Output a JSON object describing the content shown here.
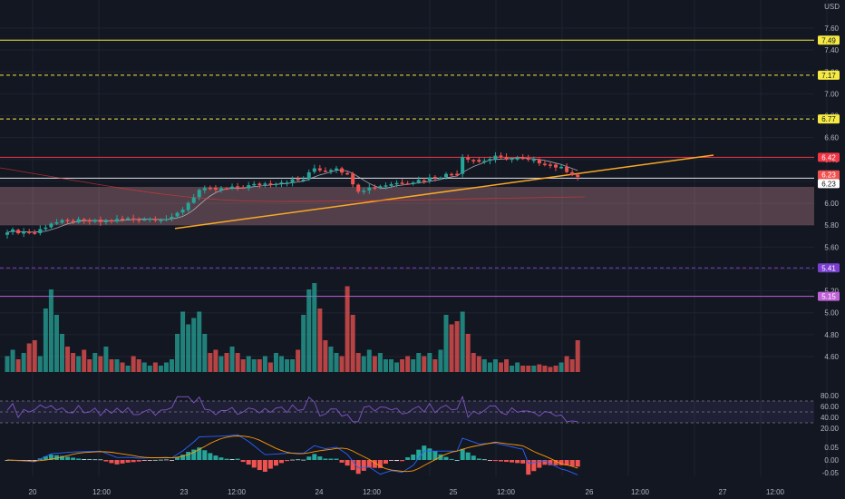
{
  "header": {
    "currency": "USD"
  },
  "colors": {
    "background": "#131722",
    "grid": "#1f2330",
    "up": "#26a69a",
    "down": "#ef5350",
    "trendline": "#f9a825",
    "level_yellow": "#f5e942",
    "level_red": "#f23645",
    "level_purple": "#7b3fd0",
    "zone": "#f9a9b0",
    "rsi": "#7e57c2",
    "macd_line": "#2962ff",
    "signal_line": "#ff9800"
  },
  "price_tags": [
    {
      "label": "7.49",
      "value": 7.49,
      "bg": "#f5e942",
      "fg": "#131722"
    },
    {
      "label": "7.17",
      "value": 7.17,
      "bg": "#f5e942",
      "fg": "#131722"
    },
    {
      "label": "6.77",
      "value": 6.77,
      "bg": "#f5e942",
      "fg": "#131722"
    },
    {
      "label": "6.42",
      "value": 6.42,
      "bg": "#f23645",
      "fg": "#ffffff"
    },
    {
      "label": "6.23",
      "value": 6.26,
      "bg": "#ef5350",
      "fg": "#ffffff"
    },
    {
      "label": "6.23",
      "value": 6.18,
      "bg": "#ffffff",
      "fg": "#131722"
    },
    {
      "label": "5.41",
      "value": 5.41,
      "bg": "#7b3fd0",
      "fg": "#ffffff"
    },
    {
      "label": "5.15",
      "value": 5.15,
      "bg": "#c062d8",
      "fg": "#ffffff"
    }
  ],
  "chart_data": [
    {
      "type": "candlestick",
      "title": "",
      "ylim": [
        4.5,
        7.7
      ],
      "y_ticks": [
        "7.60",
        "7.40",
        "7.20",
        "7.00",
        "6.80",
        "6.60",
        "6.40",
        "6.20",
        "6.00",
        "5.80",
        "5.60",
        "5.40",
        "5.20",
        "5.00",
        "4.80",
        "4.60"
      ],
      "x_ticks": [
        "20",
        "12:00",
        "23",
        "12:00",
        "24",
        "12:00",
        "25",
        "12:00",
        "26",
        "12:00",
        "27",
        "12:00"
      ],
      "levels": [
        {
          "value": 7.49,
          "style": "solid",
          "color": "yellow"
        },
        {
          "value": 7.17,
          "style": "dashed",
          "color": "yellow"
        },
        {
          "value": 6.77,
          "style": "dashed",
          "color": "yellow"
        },
        {
          "value": 6.42,
          "style": "solid",
          "color": "red"
        },
        {
          "value": 6.23,
          "style": "solid",
          "color": "white"
        },
        {
          "value": 5.41,
          "style": "dashed",
          "color": "purple"
        },
        {
          "value": 5.15,
          "style": "solid",
          "color": "purple"
        }
      ],
      "zone": {
        "from": 5.8,
        "to": 6.15
      },
      "trendline": {
        "start": {
          "x": "23",
          "y": 5.77
        },
        "end": {
          "x": "26 20:00",
          "y": 6.44
        }
      },
      "anchors": [
        {
          "t": 0,
          "p": 5.75
        },
        {
          "t": 5,
          "p": 5.73
        },
        {
          "t": 8,
          "p": 5.82
        },
        {
          "t": 12,
          "p": 5.84
        },
        {
          "t": 17,
          "p": 5.83
        },
        {
          "t": 22,
          "p": 5.86
        },
        {
          "t": 30,
          "p": 5.86
        },
        {
          "t": 32,
          "p": 5.95
        },
        {
          "t": 35,
          "p": 6.12
        },
        {
          "t": 40,
          "p": 6.13
        },
        {
          "t": 47,
          "p": 6.18
        },
        {
          "t": 54,
          "p": 6.22
        },
        {
          "t": 56,
          "p": 6.32
        },
        {
          "t": 58,
          "p": 6.3
        },
        {
          "t": 60,
          "p": 6.33
        },
        {
          "t": 62,
          "p": 6.26
        },
        {
          "t": 64,
          "p": 6.12
        },
        {
          "t": 66,
          "p": 6.14
        },
        {
          "t": 70,
          "p": 6.18
        },
        {
          "t": 74,
          "p": 6.2
        },
        {
          "t": 79,
          "p": 6.25
        },
        {
          "t": 82,
          "p": 6.28
        },
        {
          "t": 83,
          "p": 6.43
        },
        {
          "t": 86,
          "p": 6.38
        },
        {
          "t": 89,
          "p": 6.42
        },
        {
          "t": 94,
          "p": 6.4
        },
        {
          "t": 98,
          "p": 6.37
        },
        {
          "t": 102,
          "p": 6.3
        },
        {
          "t": 104,
          "p": 6.24
        }
      ],
      "candle_count": 105,
      "first_bar_hour": 14,
      "hours_per_bar": 0.5,
      "volume": [
        0.25,
        0.35,
        0.2,
        0.3,
        0.45,
        0.5,
        0.25,
        1.0,
        1.3,
        0.9,
        0.6,
        0.4,
        0.3,
        0.25,
        0.35,
        0.2,
        0.3,
        0.25,
        0.4,
        0.2,
        0.2,
        0.15,
        0.1,
        0.25,
        0.2,
        0.15,
        0.1,
        0.15,
        0.1,
        0.15,
        0.2,
        0.6,
        0.95,
        0.75,
        0.85,
        0.95,
        0.6,
        0.3,
        0.35,
        0.25,
        0.3,
        0.4,
        0.3,
        0.2,
        0.25,
        0.2,
        0.2,
        0.25,
        0.15,
        0.3,
        0.25,
        0.2,
        0.2,
        0.35,
        0.9,
        1.3,
        1.4,
        1.0,
        0.5,
        0.4,
        0.3,
        0.25,
        1.35,
        0.9,
        0.3,
        0.25,
        0.35,
        0.25,
        0.3,
        0.2,
        0.2,
        0.15,
        0.2,
        0.25,
        0.2,
        0.3,
        0.25,
        0.3,
        0.2,
        0.35,
        0.9,
        0.75,
        0.8,
        0.95,
        0.6,
        0.3,
        0.25,
        0.2,
        0.15,
        0.2,
        0.15,
        0.2,
        0.1,
        0.15,
        0.1,
        0.1,
        0.1,
        0.12,
        0.1,
        0.08,
        0.1,
        0.15,
        0.25,
        0.2,
        0.5
      ],
      "rsi_ticks": [
        "80.00",
        "60.00",
        "40.00",
        "20.00"
      ],
      "macd_ticks": [
        "0.05",
        "0.00",
        "-0.05"
      ]
    }
  ]
}
